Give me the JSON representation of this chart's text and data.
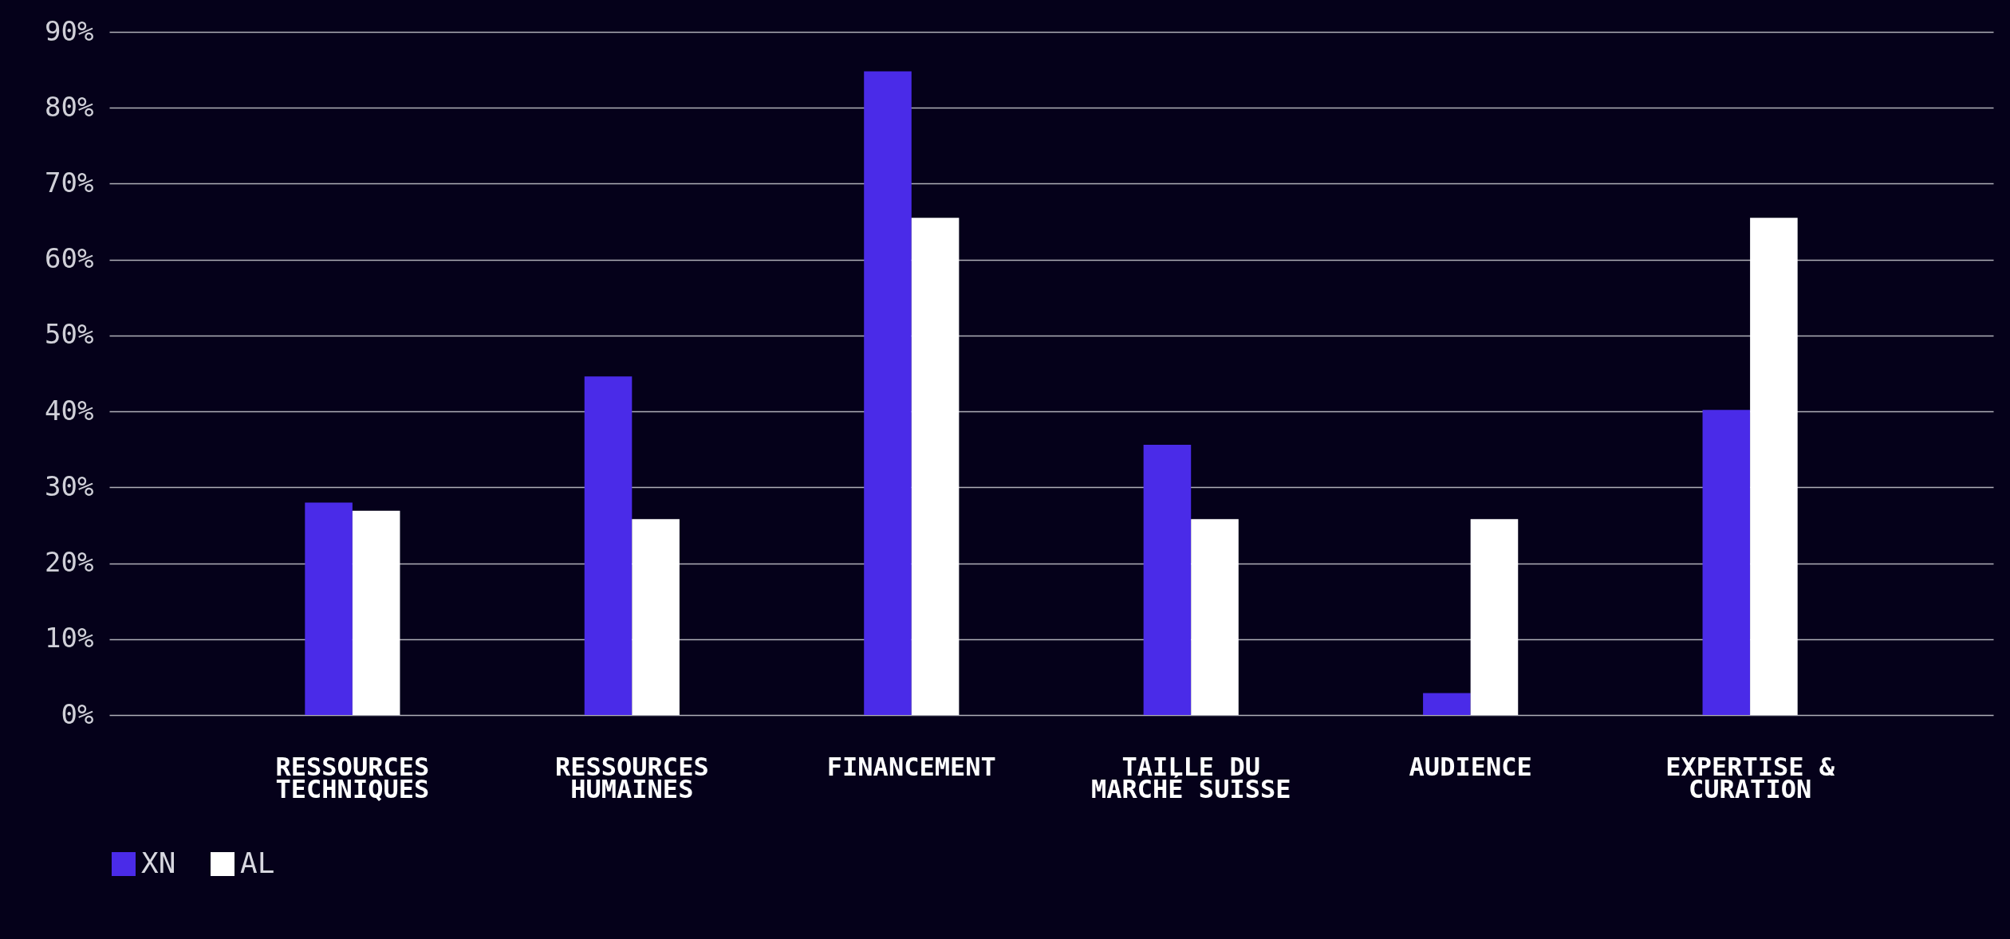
{
  "chart_data": {
    "type": "bar",
    "categories": [
      "RESSOURCES TECHNIQUES",
      "RESSOURCES HUMAINES",
      "FINANCEMENT",
      "TAILLE DU MARCHÉ SUISSE",
      "AUDIENCE",
      "EXPERTISE & CURATION"
    ],
    "series": [
      {
        "name": "XN",
        "color": "#4a2be8",
        "values": [
          28,
          44.6,
          84.8,
          35.6,
          2.9,
          40.2
        ]
      },
      {
        "name": "AL",
        "color": "#ffffff",
        "values": [
          26.9,
          25.8,
          65.5,
          25.8,
          25.8,
          65.5
        ]
      }
    ],
    "ylim": [
      0,
      90
    ],
    "yticks": [
      {
        "value": 0,
        "label": "0%"
      },
      {
        "value": 10,
        "label": "10%"
      },
      {
        "value": 20,
        "label": "20%"
      },
      {
        "value": 30,
        "label": "30%"
      },
      {
        "value": 40,
        "label": "40%"
      },
      {
        "value": 50,
        "label": "50%"
      },
      {
        "value": 60,
        "label": "60%"
      },
      {
        "value": 70,
        "label": "70%"
      },
      {
        "value": 80,
        "label": "80%"
      },
      {
        "value": 90,
        "label": "90%"
      }
    ],
    "grid": "y",
    "legend": "bottom"
  }
}
